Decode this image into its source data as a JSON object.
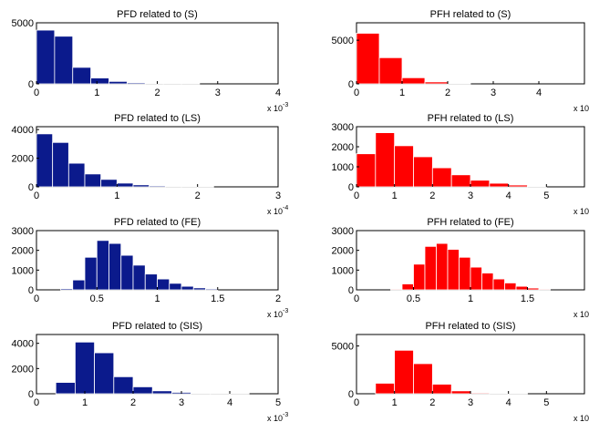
{
  "figure_colors": {
    "left": "#0b1a8c",
    "right": "#ff0000",
    "axis": "#000000"
  },
  "chart_data": [
    {
      "type": "bar",
      "title": "PFD related to (S)",
      "exponent_label": "x 10",
      "exponent_superscript": "-3",
      "xlim": [
        0,
        4
      ],
      "ylim": [
        0,
        5000
      ],
      "xticks": [
        "0",
        "1",
        "2",
        "3",
        "4"
      ],
      "yticks": [
        "0",
        "5000"
      ],
      "bins": [
        [
          0,
          0.3
        ],
        [
          0.3,
          0.6
        ],
        [
          0.6,
          0.9
        ],
        [
          0.9,
          1.2
        ],
        [
          1.2,
          1.5
        ],
        [
          1.5,
          1.8
        ],
        [
          1.8,
          2.1
        ],
        [
          2.1,
          2.4
        ],
        [
          2.4,
          2.7
        ]
      ],
      "values": [
        4400,
        3900,
        1350,
        480,
        200,
        90,
        45,
        25,
        12
      ],
      "color": "#0b1a8c"
    },
    {
      "type": "bar",
      "title": "PFH related to (S)",
      "exponent_label": "x 10",
      "exponent_superscript": "",
      "xlim": [
        0,
        5
      ],
      "ylim": [
        0,
        7000
      ],
      "xticks": [
        "0",
        "1",
        "2",
        "3",
        "4"
      ],
      "yticks": [
        "0",
        "5000"
      ],
      "bins": [
        [
          0,
          0.5
        ],
        [
          0.5,
          1.0
        ],
        [
          1.0,
          1.5
        ],
        [
          1.5,
          2.0
        ],
        [
          2.0,
          2.5
        ]
      ],
      "values": [
        5800,
        3000,
        700,
        220,
        60
      ],
      "color": "#ff0000"
    },
    {
      "type": "bar",
      "title": "PFD related to (LS)",
      "exponent_label": "x 10",
      "exponent_superscript": "-4",
      "xlim": [
        0,
        3
      ],
      "ylim": [
        0,
        4200
      ],
      "xticks": [
        "0",
        "1",
        "2",
        "3"
      ],
      "yticks": [
        "0",
        "2000",
        "4000"
      ],
      "bins": [
        [
          0,
          0.2
        ],
        [
          0.2,
          0.4
        ],
        [
          0.4,
          0.6
        ],
        [
          0.6,
          0.8
        ],
        [
          0.8,
          1.0
        ],
        [
          1.0,
          1.2
        ],
        [
          1.2,
          1.4
        ],
        [
          1.4,
          1.6
        ],
        [
          1.6,
          1.8
        ],
        [
          1.8,
          2.0
        ],
        [
          2.0,
          2.2
        ]
      ],
      "values": [
        3700,
        3100,
        1650,
        900,
        520,
        260,
        140,
        70,
        35,
        15,
        8
      ],
      "color": "#0b1a8c"
    },
    {
      "type": "bar",
      "title": "PFH related to (LS)",
      "exponent_label": "x 10",
      "exponent_superscript": "",
      "xlim": [
        0,
        6
      ],
      "ylim": [
        0,
        3000
      ],
      "xticks": [
        "0",
        "1",
        "2",
        "3",
        "4",
        "5"
      ],
      "yticks": [
        "0",
        "1000",
        "2000",
        "3000"
      ],
      "bins": [
        [
          0,
          0.5
        ],
        [
          0.5,
          1.0
        ],
        [
          1.0,
          1.5
        ],
        [
          1.5,
          2.0
        ],
        [
          2.0,
          2.5
        ],
        [
          2.5,
          3.0
        ],
        [
          3.0,
          3.5
        ],
        [
          3.5,
          4.0
        ],
        [
          4.0,
          4.5
        ],
        [
          4.5,
          5.0
        ]
      ],
      "values": [
        1650,
        2700,
        2050,
        1500,
        950,
        600,
        330,
        180,
        90,
        35
      ],
      "color": "#ff0000"
    },
    {
      "type": "bar",
      "title": "PFD related to (FE)",
      "exponent_label": "x 10",
      "exponent_superscript": "-3",
      "xlim": [
        0,
        2
      ],
      "ylim": [
        0,
        3000
      ],
      "xticks": [
        "0",
        "0.5",
        "1",
        "1.5",
        "2"
      ],
      "yticks": [
        "0",
        "1000",
        "2000",
        "3000"
      ],
      "bins": [
        [
          0.2,
          0.3
        ],
        [
          0.3,
          0.4
        ],
        [
          0.4,
          0.5
        ],
        [
          0.5,
          0.6
        ],
        [
          0.6,
          0.7
        ],
        [
          0.7,
          0.8
        ],
        [
          0.8,
          0.9
        ],
        [
          0.9,
          1.0
        ],
        [
          1.0,
          1.1
        ],
        [
          1.1,
          1.2
        ],
        [
          1.2,
          1.3
        ],
        [
          1.3,
          1.4
        ],
        [
          1.4,
          1.5
        ]
      ],
      "values": [
        60,
        500,
        1650,
        2500,
        2350,
        1750,
        1250,
        800,
        550,
        330,
        180,
        100,
        50
      ],
      "color": "#0b1a8c"
    },
    {
      "type": "bar",
      "title": "PFH related to (FE)",
      "exponent_label": "x 10",
      "exponent_superscript": "",
      "xlim": [
        0,
        2
      ],
      "ylim": [
        0,
        3000
      ],
      "xticks": [
        "0",
        "0.5",
        "1",
        "1.5"
      ],
      "yticks": [
        "0",
        "1000",
        "2000",
        "3000"
      ],
      "bins": [
        [
          0.3,
          0.4
        ],
        [
          0.4,
          0.5
        ],
        [
          0.5,
          0.6
        ],
        [
          0.6,
          0.7
        ],
        [
          0.7,
          0.8
        ],
        [
          0.8,
          0.9
        ],
        [
          0.9,
          1.0
        ],
        [
          1.0,
          1.1
        ],
        [
          1.1,
          1.2
        ],
        [
          1.2,
          1.3
        ],
        [
          1.3,
          1.4
        ],
        [
          1.4,
          1.5
        ],
        [
          1.5,
          1.6
        ],
        [
          1.6,
          1.7
        ]
      ],
      "values": [
        40,
        300,
        1300,
        2200,
        2350,
        2050,
        1650,
        1150,
        850,
        550,
        350,
        180,
        90,
        40
      ],
      "color": "#ff0000"
    },
    {
      "type": "bar",
      "title": "PFD related to (SIS)",
      "exponent_label": "x 10",
      "exponent_superscript": "-3",
      "xlim": [
        0,
        5
      ],
      "ylim": [
        0,
        4700
      ],
      "xticks": [
        "0",
        "1",
        "2",
        "3",
        "4",
        "5"
      ],
      "yticks": [
        "0",
        "2000",
        "4000"
      ],
      "bins": [
        [
          0.4,
          0.8
        ],
        [
          0.8,
          1.2
        ],
        [
          1.2,
          1.6
        ],
        [
          1.6,
          2.0
        ],
        [
          2.0,
          2.4
        ],
        [
          2.4,
          2.8
        ],
        [
          2.8,
          3.2
        ],
        [
          3.2,
          3.6
        ],
        [
          3.6,
          4.0
        ],
        [
          4.0,
          4.4
        ]
      ],
      "values": [
        900,
        4100,
        3250,
        1350,
        550,
        230,
        110,
        50,
        25,
        12
      ],
      "color": "#0b1a8c"
    },
    {
      "type": "bar",
      "title": "PFH related to (SIS)",
      "exponent_label": "x 10",
      "exponent_superscript": "",
      "xlim": [
        0,
        6
      ],
      "ylim": [
        0,
        6200
      ],
      "xticks": [
        "0",
        "1",
        "2",
        "3",
        "4",
        "5"
      ],
      "yticks": [
        "0",
        "5000"
      ],
      "bins": [
        [
          0.5,
          1.0
        ],
        [
          1.0,
          1.5
        ],
        [
          1.5,
          2.0
        ],
        [
          2.0,
          2.5
        ],
        [
          2.5,
          3.0
        ],
        [
          3.0,
          3.5
        ],
        [
          3.5,
          4.0
        ],
        [
          4.0,
          4.5
        ]
      ],
      "values": [
        1100,
        4550,
        3150,
        1000,
        300,
        90,
        30,
        10
      ],
      "color": "#ff0000"
    }
  ]
}
